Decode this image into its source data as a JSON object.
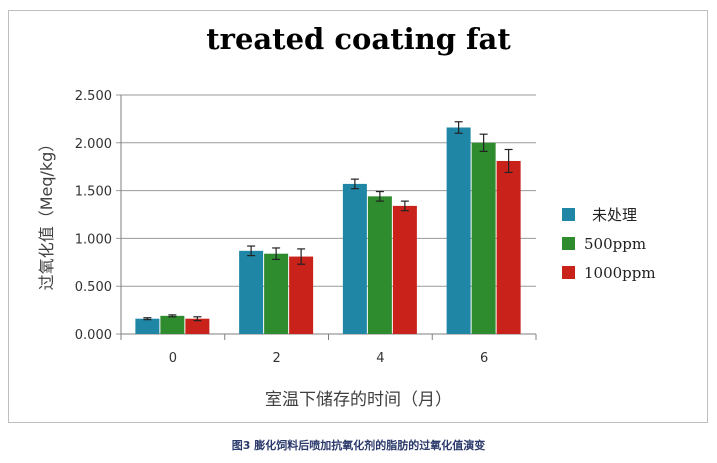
{
  "chart_data": {
    "type": "bar",
    "title": "treated coating fat",
    "xlabel": "室温下储存的时间（月）",
    "ylabel": "过氧化值（Meq/kg）",
    "categories": [
      "0",
      "2",
      "4",
      "6"
    ],
    "y_ticks": [
      "0.000",
      "0.500",
      "1.000",
      "1.500",
      "2.000",
      "2.500"
    ],
    "ylim": [
      0,
      2.5
    ],
    "grid": true,
    "legend_position": "right",
    "series": [
      {
        "name": "未处理",
        "color": "#1f86a6",
        "values": [
          0.16,
          0.87,
          1.57,
          2.16
        ],
        "errors": [
          0.01,
          0.05,
          0.05,
          0.06
        ]
      },
      {
        "name": "500ppm",
        "color": "#2e8b2e",
        "values": [
          0.19,
          0.84,
          1.44,
          2.0
        ],
        "errors": [
          0.01,
          0.06,
          0.05,
          0.09
        ]
      },
      {
        "name": "1000ppm",
        "color": "#c9221a",
        "values": [
          0.16,
          0.81,
          1.34,
          1.81
        ],
        "errors": [
          0.02,
          0.08,
          0.05,
          0.12
        ]
      }
    ]
  },
  "caption": "图3 膨化饲料后喷加抗氧化剂的脂肪的过氧化值演变"
}
